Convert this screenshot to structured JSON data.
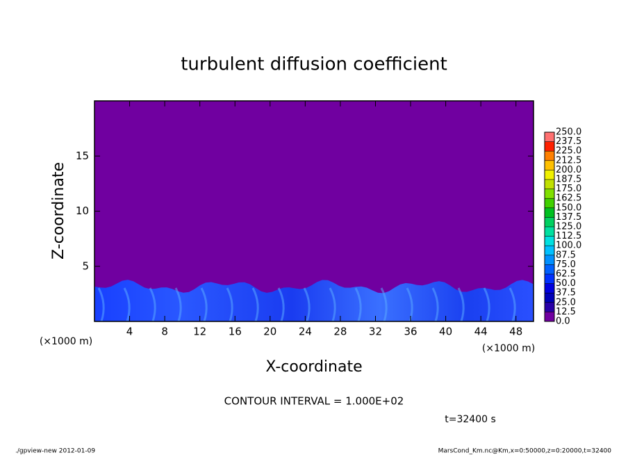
{
  "chart_data": {
    "type": "contour",
    "title": "turbulent diffusion coefficient",
    "x_label": "X-coordinate",
    "y_label": "Z-coordinate",
    "x_unit": "(×1000 m)",
    "xlim": [
      0,
      50
    ],
    "xticks": [
      4,
      8,
      12,
      16,
      20,
      24,
      28,
      32,
      36,
      40,
      44,
      48
    ],
    "ylim": [
      0,
      20
    ],
    "yticks": [
      5,
      10,
      15
    ],
    "levels": [
      {
        "value": 0,
        "label": "0.0"
      },
      {
        "value": 12.5,
        "label": "12.5"
      },
      {
        "value": 25,
        "label": "25.0"
      },
      {
        "value": 37.5,
        "label": "37.5"
      },
      {
        "value": 50,
        "label": "50.0"
      },
      {
        "value": 62.5,
        "label": "62.5"
      },
      {
        "value": 75,
        "label": "75.0"
      },
      {
        "value": 87.5,
        "label": "87.5"
      },
      {
        "value": 100,
        "label": "100.0"
      },
      {
        "value": 112.5,
        "label": "112.5"
      },
      {
        "value": 125,
        "label": "125.0"
      },
      {
        "value": 137.5,
        "label": "137.5"
      },
      {
        "value": 150,
        "label": "150.0"
      },
      {
        "value": 162.5,
        "label": "162.5"
      },
      {
        "value": 175,
        "label": "175.0"
      },
      {
        "value": 187.5,
        "label": "187.5"
      },
      {
        "value": 200,
        "label": "200.0"
      },
      {
        "value": 212.5,
        "label": "212.5"
      },
      {
        "value": 225,
        "label": "225.0"
      },
      {
        "value": 237.5,
        "label": "237.5"
      },
      {
        "value": 250,
        "label": "250.0"
      }
    ],
    "colors": [
      "#7000a0",
      "#2800a8",
      "#0000b8",
      "#0000e0",
      "#0030ff",
      "#0060ff",
      "#0090ff",
      "#00c0ff",
      "#00e0e0",
      "#00e0a0",
      "#00d060",
      "#00c020",
      "#40d000",
      "#80e000",
      "#c0e000",
      "#f0f000",
      "#ffc000",
      "#ff8000",
      "#ff2000",
      "#ff7070"
    ],
    "contour_interval": "CONTOUR INTERVAL = 1.000E+02",
    "time_label": "t=32400 s",
    "footer_left": "./gpview-new  2012-01-09",
    "footer_right": "MarsCond_Km.nc@Km,x=0:50000,z=0:20000,t=32400"
  }
}
